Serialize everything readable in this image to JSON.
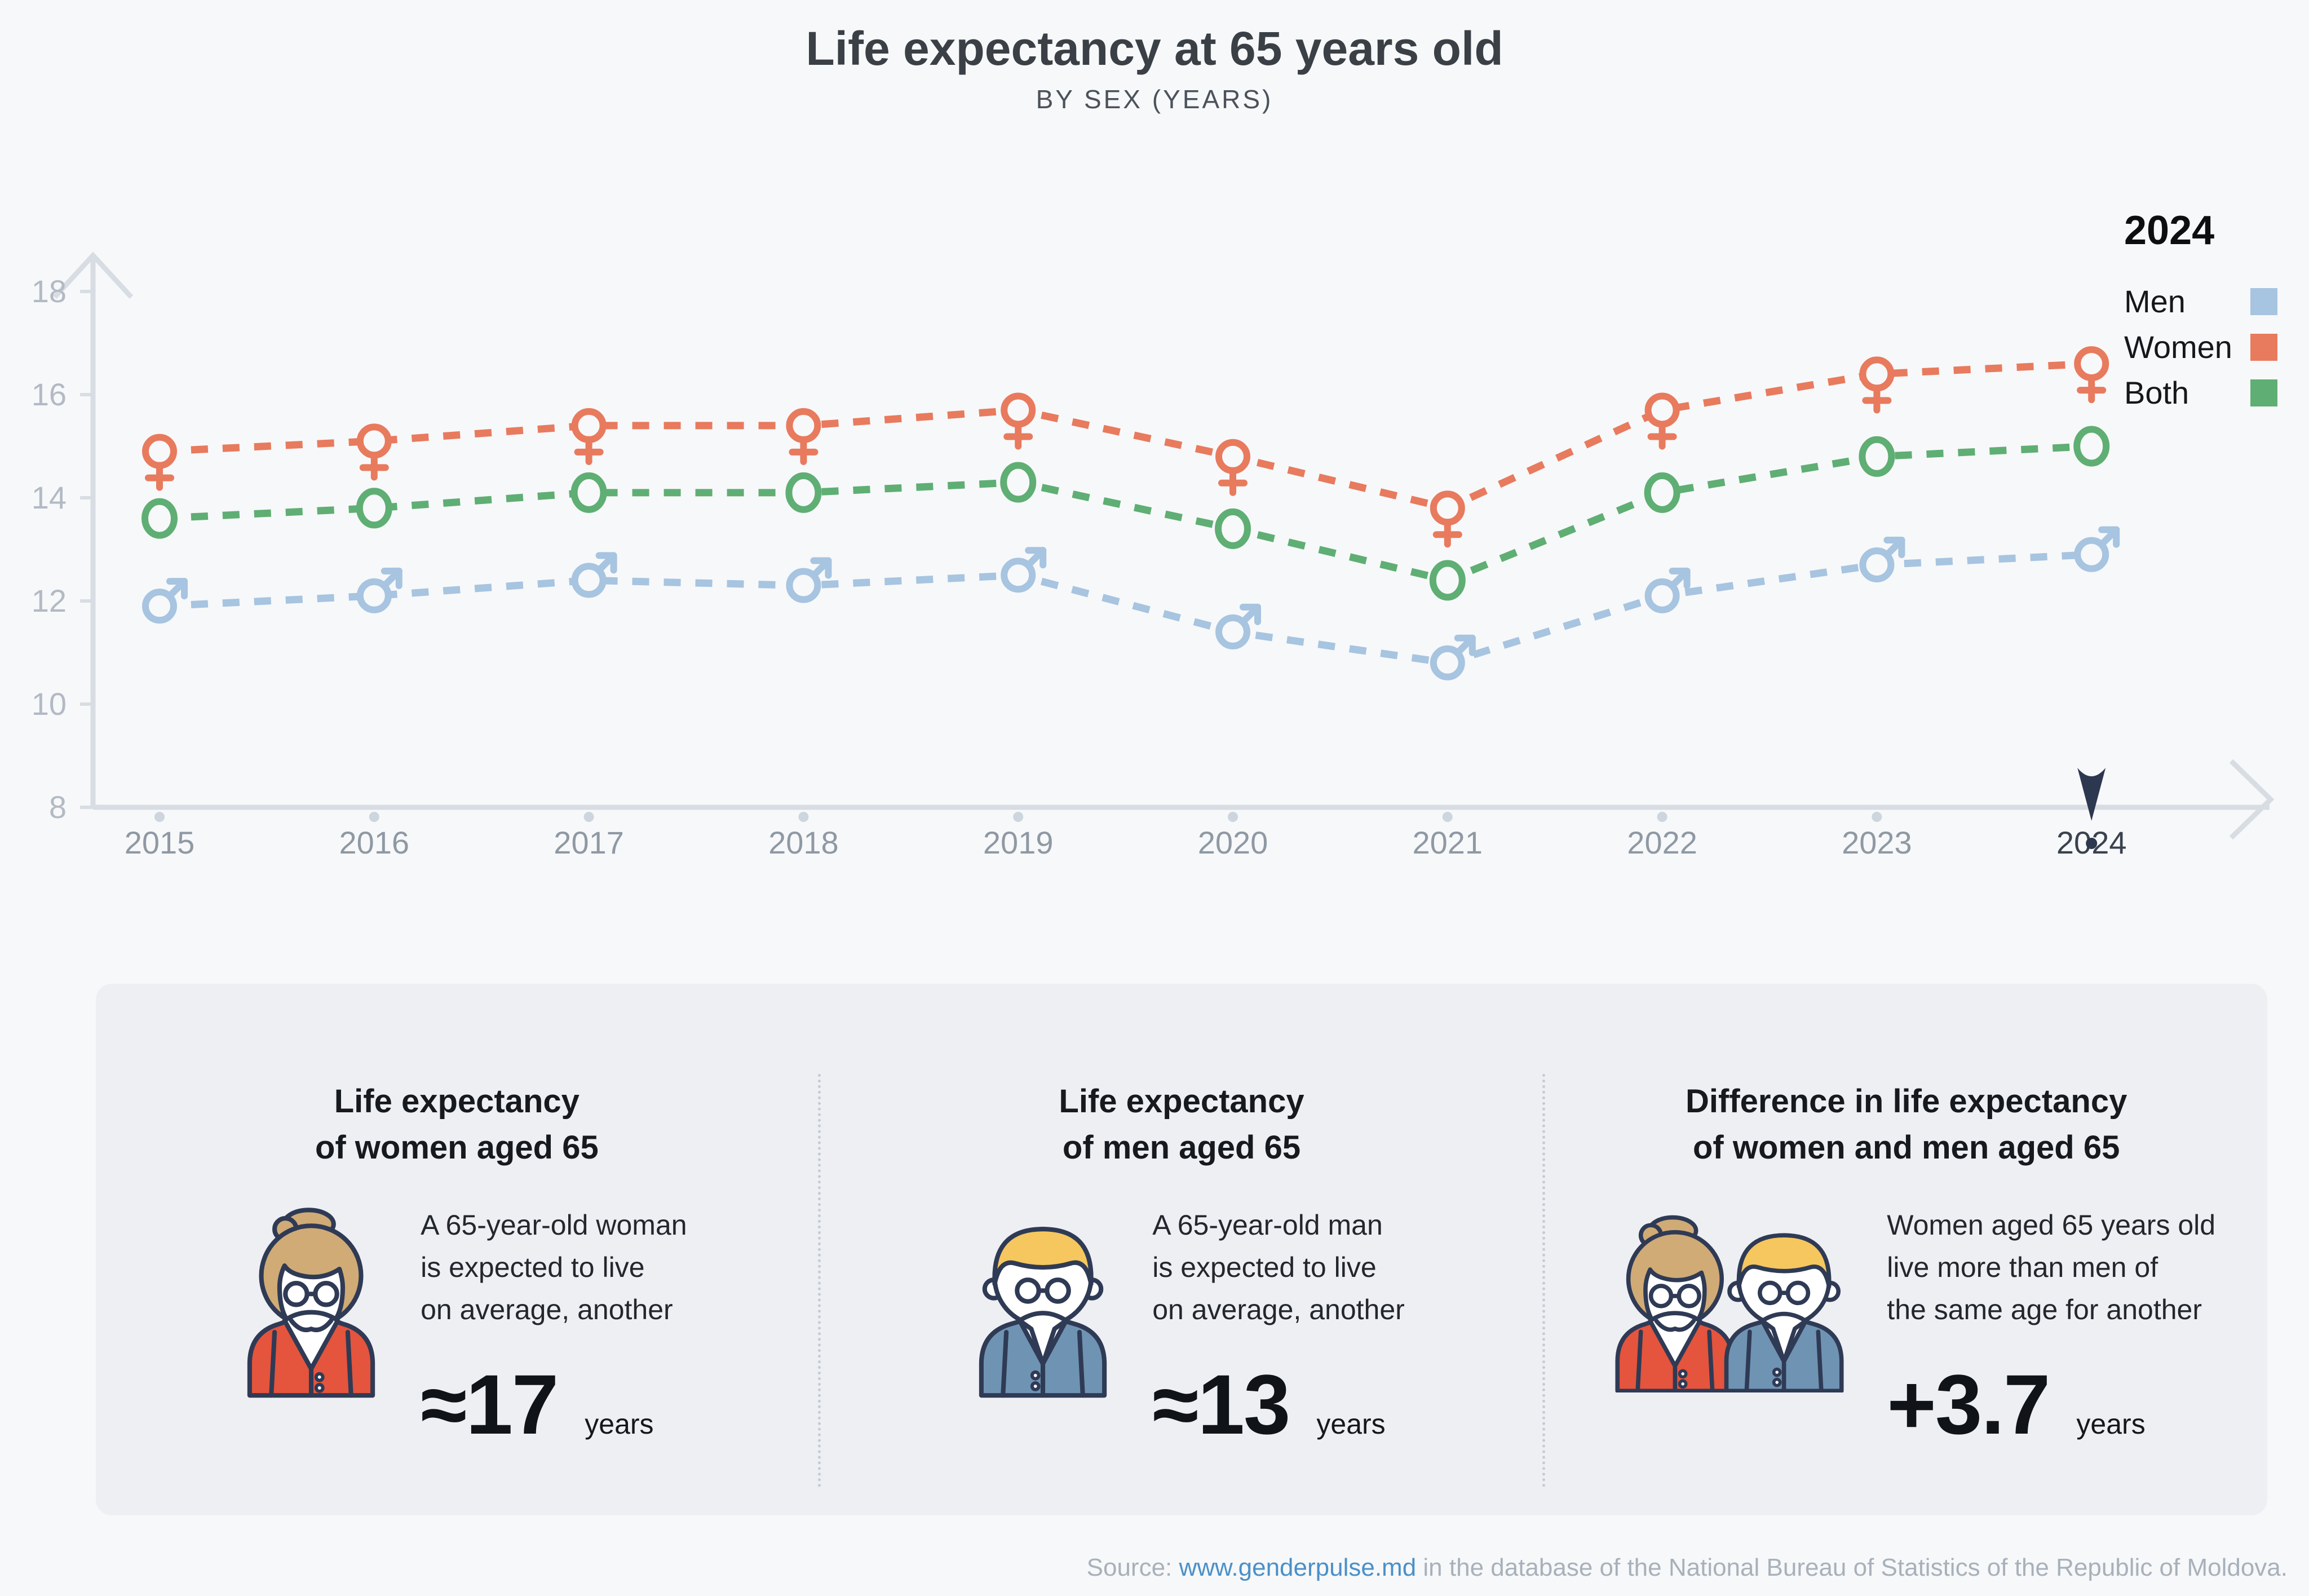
{
  "header": {
    "title": "Life expectancy at 65 years old",
    "subtitle": "BY SEX (YEARS)"
  },
  "legend": {
    "year": "2024",
    "items": [
      {
        "label": "Men",
        "color": "#a7c4e0"
      },
      {
        "label": "Women",
        "color": "#e87a5e"
      },
      {
        "label": "Both",
        "color": "#5fae74"
      }
    ]
  },
  "chart_data": {
    "type": "line",
    "line_style": "dashed",
    "x": [
      "2015",
      "2016",
      "2017",
      "2018",
      "2019",
      "2020",
      "2021",
      "2022",
      "2023",
      "2024"
    ],
    "series": [
      {
        "name": "Men",
        "marker": "male",
        "color": "#a7c4e0",
        "values": [
          11.9,
          12.1,
          12.4,
          12.3,
          12.5,
          11.4,
          10.8,
          12.1,
          12.7,
          12.9
        ]
      },
      {
        "name": "Women",
        "marker": "female",
        "color": "#e87a5e",
        "values": [
          14.9,
          15.1,
          15.4,
          15.4,
          15.7,
          14.8,
          13.8,
          15.7,
          16.4,
          16.6
        ]
      },
      {
        "name": "Both",
        "marker": "circle",
        "color": "#5fae74",
        "values": [
          13.6,
          13.8,
          14.1,
          14.1,
          14.3,
          13.4,
          12.4,
          14.1,
          14.8,
          15.0
        ]
      }
    ],
    "yticks": [
      8,
      10,
      12,
      14,
      16,
      18
    ],
    "ylim": [
      8,
      19
    ],
    "xlabel": "",
    "ylabel": "",
    "grid": false,
    "legend_position": "top-right",
    "highlight_year": "2024"
  },
  "cards": [
    {
      "heading_line1": "Life expectancy",
      "heading_line2": "of women aged 65",
      "body_lines": [
        "A 65-year-old woman",
        "is expected to live",
        "on average, another"
      ],
      "value": "≈17",
      "unit": "years",
      "avatar": "woman"
    },
    {
      "heading_line1": "Life expectancy",
      "heading_line2": "of men aged 65",
      "body_lines": [
        "A 65-year-old man",
        "is expected to live",
        "on average, another"
      ],
      "value": "≈13",
      "unit": "years",
      "avatar": "man"
    },
    {
      "heading_line1": "Difference in life expectancy",
      "heading_line2": "of women and men aged 65",
      "body_lines": [
        "Women aged 65 years old",
        "live more than men of",
        "the same age for another"
      ],
      "value": "+3.7",
      "unit": "years",
      "avatar": "couple"
    }
  ],
  "footer": {
    "prefix": "Source: ",
    "link": "www.genderpulse.md",
    "suffix": " in the database of the National Bureau of Statistics of the Republic of Moldova."
  },
  "colors": {
    "background": "#f7f8f9",
    "panel": "#edeff3",
    "axis": "#d8dde4",
    "ytick_label": "#b2bac4",
    "year_label": "#8f99a4",
    "year_label_active": "#39424e",
    "year_dot": "#cdd5de",
    "pointer": "#2c3750",
    "outline_navy": "#2f3a55",
    "hair_tan": "#d0ab76",
    "hair_blond": "#f5c75e",
    "cardigan_red": "#e5543c",
    "jacket_blue": "#6f93b3"
  }
}
